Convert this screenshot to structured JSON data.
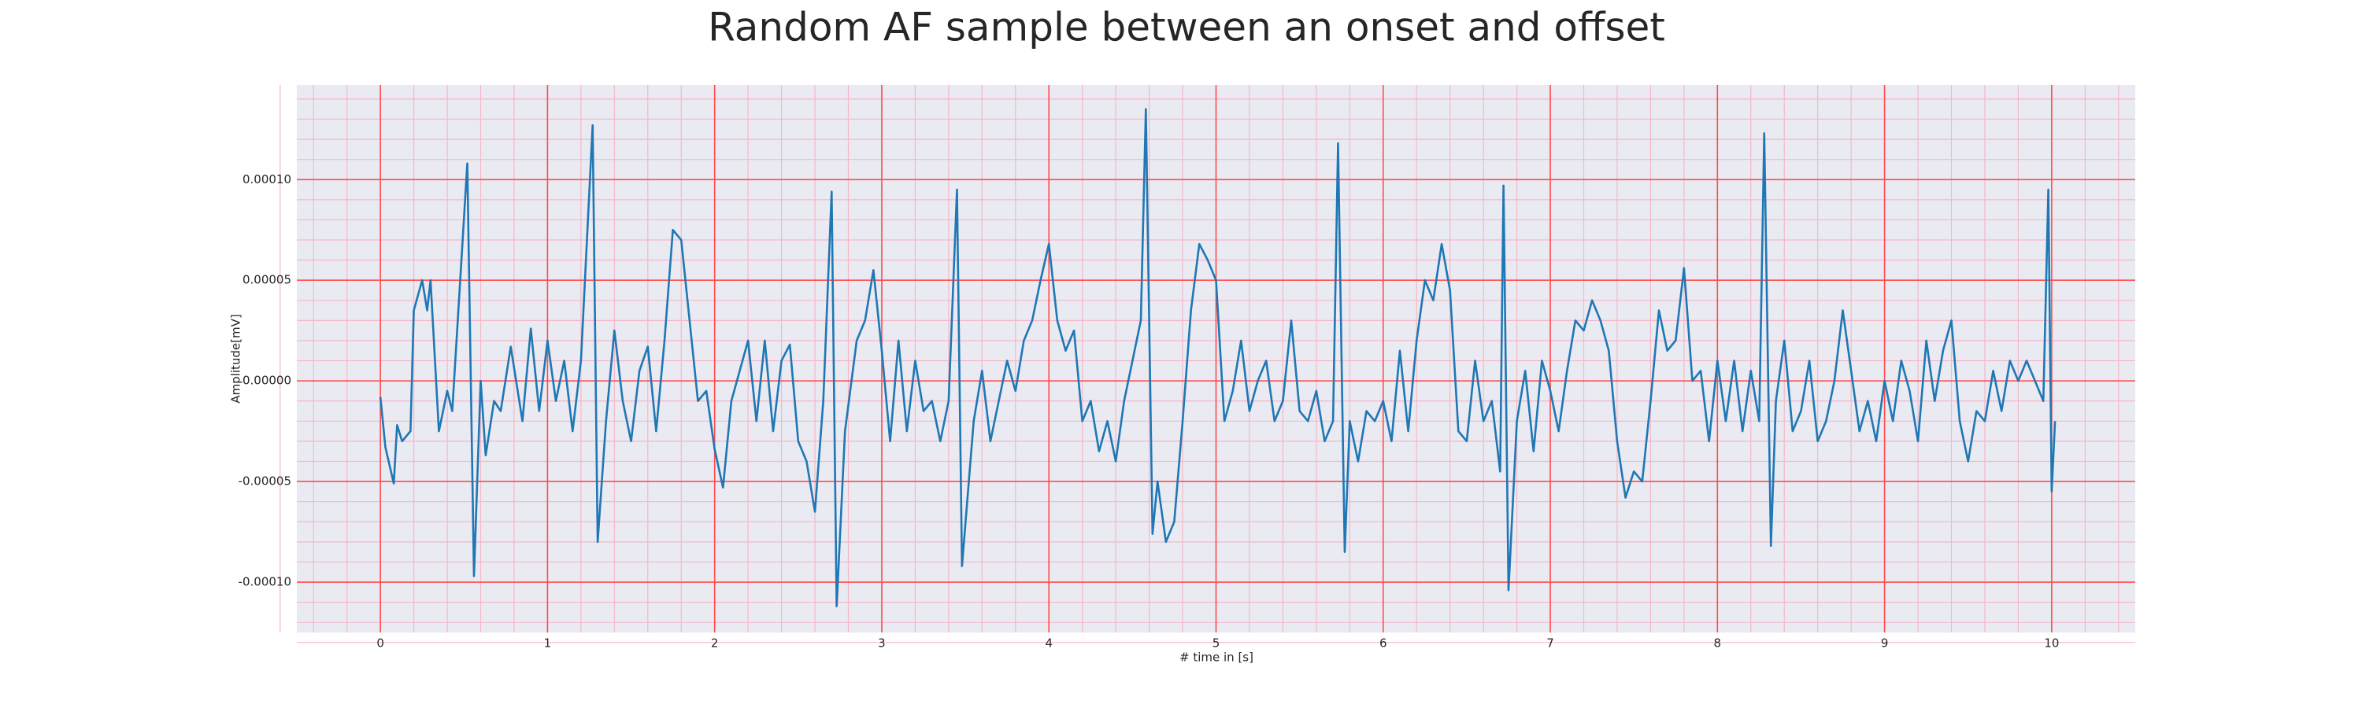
{
  "chart_data": {
    "type": "line",
    "title": "Random AF sample between an onset and offset",
    "x_label": "# time in [s]",
    "y_label": "Amplitude[mV]",
    "xlim": [
      -0.5,
      10.5
    ],
    "ylim": [
      -0.000125,
      0.000147
    ],
    "xticks": [
      0,
      1,
      2,
      3,
      4,
      5,
      6,
      7,
      8,
      9,
      10
    ],
    "yticks": [
      {
        "value": -0.0001,
        "label": "-0.00010"
      },
      {
        "value": -5e-05,
        "label": "-0.00005"
      },
      {
        "value": 0,
        "label": "0.00000"
      },
      {
        "value": 5e-05,
        "label": "0.00005"
      },
      {
        "value": 0.0001,
        "label": "0.00010"
      }
    ],
    "grid": true,
    "grid_color": "#ff4d4d",
    "minor_grid_color": "#f4b8c8",
    "background": "#eaeaf2",
    "color": "#1f77b4",
    "x": [
      0,
      0.03,
      0.08,
      0.1,
      0.13,
      0.18,
      0.2,
      0.25,
      0.28,
      0.3,
      0.35,
      0.4,
      0.43,
      0.52,
      0.56,
      0.6,
      0.63,
      0.68,
      0.72,
      0.78,
      0.85,
      0.9,
      0.95,
      1.0,
      1.05,
      1.1,
      1.15,
      1.2,
      1.27,
      1.3,
      1.35,
      1.4,
      1.45,
      1.5,
      1.55,
      1.6,
      1.65,
      1.7,
      1.75,
      1.8,
      1.85,
      1.9,
      1.95,
      2.0,
      2.05,
      2.1,
      2.15,
      2.2,
      2.25,
      2.3,
      2.35,
      2.4,
      2.45,
      2.5,
      2.55,
      2.6,
      2.65,
      2.7,
      2.73,
      2.78,
      2.85,
      2.9,
      2.95,
      3.0,
      3.05,
      3.1,
      3.15,
      3.2,
      3.25,
      3.3,
      3.35,
      3.4,
      3.45,
      3.48,
      3.55,
      3.6,
      3.65,
      3.7,
      3.75,
      3.8,
      3.85,
      3.9,
      3.95,
      4.0,
      4.05,
      4.1,
      4.15,
      4.2,
      4.25,
      4.3,
      4.35,
      4.4,
      4.45,
      4.5,
      4.55,
      4.58,
      4.62,
      4.65,
      4.7,
      4.75,
      4.8,
      4.85,
      4.9,
      4.95,
      5.0,
      5.05,
      5.1,
      5.15,
      5.2,
      5.25,
      5.3,
      5.35,
      5.4,
      5.45,
      5.5,
      5.55,
      5.6,
      5.65,
      5.7,
      5.73,
      5.77,
      5.8,
      5.85,
      5.9,
      5.95,
      6.0,
      6.05,
      6.1,
      6.15,
      6.2,
      6.25,
      6.3,
      6.35,
      6.4,
      6.45,
      6.5,
      6.55,
      6.6,
      6.65,
      6.7,
      6.72,
      6.75,
      6.8,
      6.85,
      6.9,
      6.95,
      7.0,
      7.05,
      7.1,
      7.15,
      7.2,
      7.25,
      7.3,
      7.35,
      7.4,
      7.45,
      7.5,
      7.55,
      7.6,
      7.65,
      7.7,
      7.75,
      7.8,
      7.85,
      7.9,
      7.95,
      8.0,
      8.05,
      8.1,
      8.15,
      8.2,
      8.25,
      8.28,
      8.32,
      8.35,
      8.4,
      8.45,
      8.5,
      8.55,
      8.6,
      8.65,
      8.7,
      8.75,
      8.8,
      8.85,
      8.9,
      8.95,
      9.0,
      9.05,
      9.1,
      9.15,
      9.2,
      9.25,
      9.3,
      9.35,
      9.4,
      9.45,
      9.5,
      9.55,
      9.6,
      9.65,
      9.7,
      9.75,
      9.8,
      9.85,
      9.9,
      9.95,
      9.98,
      10.0,
      10.02
    ],
    "values": [
      -8e-06,
      -3.3e-05,
      -5.1e-05,
      -2.2e-05,
      -3e-05,
      -2.5e-05,
      3.5e-05,
      5e-05,
      3.5e-05,
      5e-05,
      -2.5e-05,
      -5e-06,
      -1.5e-05,
      0.000108,
      -9.7e-05,
      0,
      -3.7e-05,
      -1e-05,
      -1.5e-05,
      1.7e-05,
      -2e-05,
      2.6e-05,
      -1.5e-05,
      2e-05,
      -1e-05,
      1e-05,
      -2.5e-05,
      1e-05,
      0.000127,
      -8e-05,
      -2e-05,
      2.5e-05,
      -1e-05,
      -3e-05,
      5e-06,
      1.7e-05,
      -2.5e-05,
      2e-05,
      7.5e-05,
      7e-05,
      3e-05,
      -1e-05,
      -5e-06,
      -3.4e-05,
      -5.3e-05,
      -1e-05,
      5e-06,
      2e-05,
      -2e-05,
      2e-05,
      -2.5e-05,
      1e-05,
      1.8e-05,
      -3e-05,
      -4e-05,
      -6.5e-05,
      -1e-05,
      9.4e-05,
      -0.000112,
      -2.5e-05,
      2e-05,
      3e-05,
      5.5e-05,
      1.5e-05,
      -3e-05,
      2e-05,
      -2.5e-05,
      1e-05,
      -1.5e-05,
      -1e-05,
      -3e-05,
      -1e-05,
      9.5e-05,
      -9.2e-05,
      -2e-05,
      5e-06,
      -3e-05,
      -1e-05,
      1e-05,
      -5e-06,
      2e-05,
      3e-05,
      5e-05,
      6.8e-05,
      3e-05,
      1.5e-05,
      2.5e-05,
      -2e-05,
      -1e-05,
      -3.5e-05,
      -2e-05,
      -4e-05,
      -1e-05,
      1e-05,
      3e-05,
      0.000135,
      -7.6e-05,
      -5e-05,
      -8e-05,
      -7e-05,
      -2e-05,
      3.5e-05,
      6.8e-05,
      6e-05,
      5e-05,
      -2e-05,
      -5e-06,
      2e-05,
      -1.5e-05,
      0,
      1e-05,
      -2e-05,
      -1e-05,
      3e-05,
      -1.5e-05,
      -2e-05,
      -5e-06,
      -3e-05,
      -2e-05,
      0.000118,
      -8.5e-05,
      -2e-05,
      -4e-05,
      -1.5e-05,
      -2e-05,
      -1e-05,
      -3e-05,
      1.5e-05,
      -2.5e-05,
      2e-05,
      5e-05,
      4e-05,
      6.8e-05,
      4.5e-05,
      -2.5e-05,
      -3e-05,
      1e-05,
      -2e-05,
      -1e-05,
      -4.5e-05,
      9.7e-05,
      -0.000104,
      -2e-05,
      5e-06,
      -3.5e-05,
      1e-05,
      -5e-06,
      -2.5e-05,
      5e-06,
      3e-05,
      2.5e-05,
      4e-05,
      3e-05,
      1.5e-05,
      -3e-05,
      -5.8e-05,
      -4.5e-05,
      -5e-05,
      -1e-05,
      3.5e-05,
      1.5e-05,
      2e-05,
      5.6e-05,
      0,
      5e-06,
      -3e-05,
      1e-05,
      -2e-05,
      1e-05,
      -2.5e-05,
      5e-06,
      -2e-05,
      0.000123,
      -8.2e-05,
      -1e-05,
      2e-05,
      -2.5e-05,
      -1.5e-05,
      1e-05,
      -3e-05,
      -2e-05,
      0,
      3.5e-05,
      5e-06,
      -2.5e-05,
      -1e-05,
      -3e-05,
      0,
      -2e-05,
      1e-05,
      -5e-06,
      -3e-05,
      2e-05,
      -1e-05,
      1.5e-05,
      3e-05,
      -2e-05,
      -4e-05,
      -1.5e-05,
      -2e-05,
      5e-06,
      -1.5e-05,
      1e-05,
      0,
      1e-05,
      0,
      -1e-05,
      9.5e-05,
      -5.5e-05,
      -2e-05
    ]
  }
}
